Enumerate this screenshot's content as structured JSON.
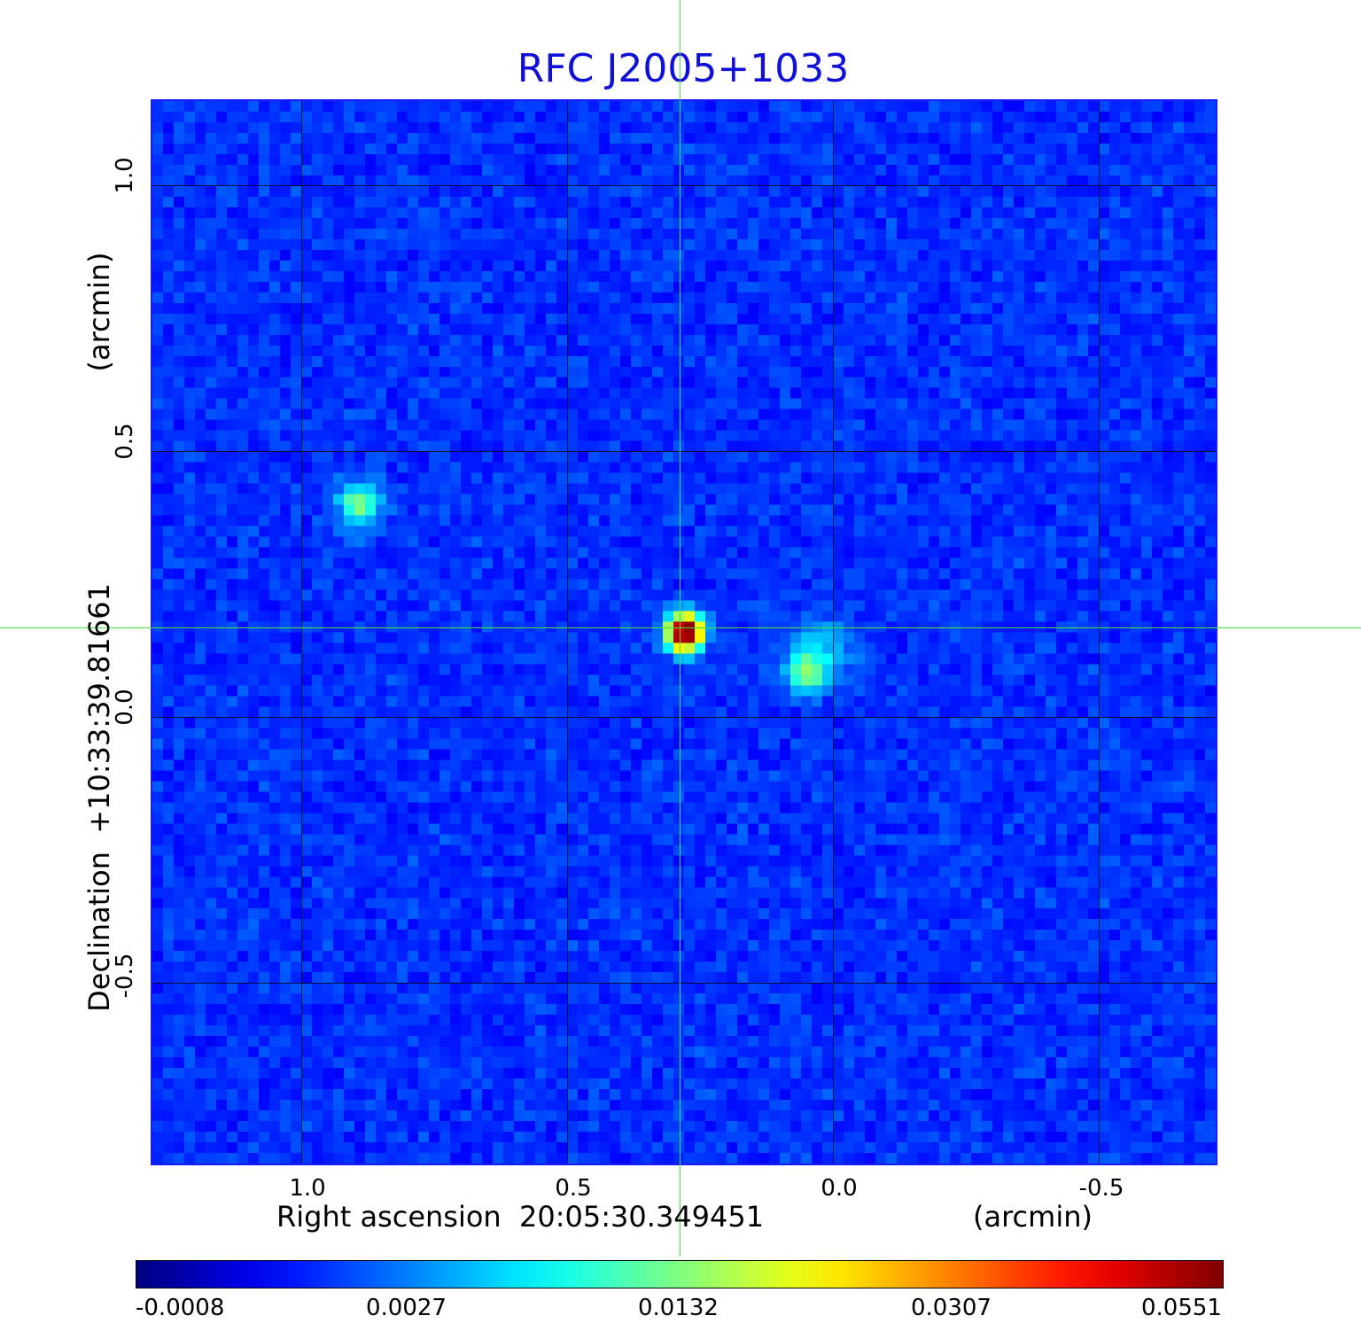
{
  "title": "RFC J2005+1033",
  "axes": {
    "x_label": "Right ascension  20:05:30.349451",
    "x_unit": "(arcmin)",
    "y_label": "Declination  +10:33:39.81661",
    "y_unit": "(arcmin)",
    "x_ticks": [
      "1.0",
      "0.5",
      "0.0",
      "-0.5"
    ],
    "y_ticks": [
      "1.0",
      "0.5",
      "0.0",
      "-0.5"
    ]
  },
  "colorbar": {
    "ticks": [
      "-0.0008",
      "0.0027",
      "0.0132",
      "0.0307",
      "0.0551"
    ],
    "colormap": "jet"
  },
  "colors": {
    "title": "#1010d8",
    "crosshair": "#44e044",
    "background_field": "#2a4bff"
  }
}
